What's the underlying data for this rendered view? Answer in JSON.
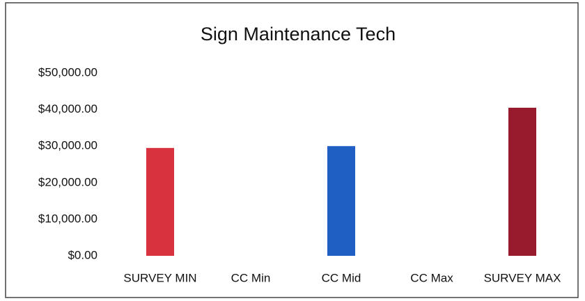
{
  "chart_data": {
    "type": "bar",
    "title": "Sign Maintenance Tech",
    "categories": [
      "SURVEY MIN",
      "CC Min",
      "CC Mid",
      "CC Max",
      "SURVEY MAX"
    ],
    "values": [
      29500,
      null,
      30000,
      null,
      40500
    ],
    "colors": [
      "#d9323f",
      "#1f5fc4",
      "#1f5fc4",
      "#1f5fc4",
      "#981b2d"
    ],
    "ylim": [
      0,
      50000
    ],
    "yticks": [
      {
        "value": 0,
        "label": "$0.00"
      },
      {
        "value": 10000,
        "label": "$10,000.00"
      },
      {
        "value": 20000,
        "label": "$20,000.00"
      },
      {
        "value": 30000,
        "label": "$30,000.00"
      },
      {
        "value": 40000,
        "label": "$40,000.00"
      },
      {
        "value": 50000,
        "label": "$50,000.00"
      }
    ],
    "grid": false
  }
}
